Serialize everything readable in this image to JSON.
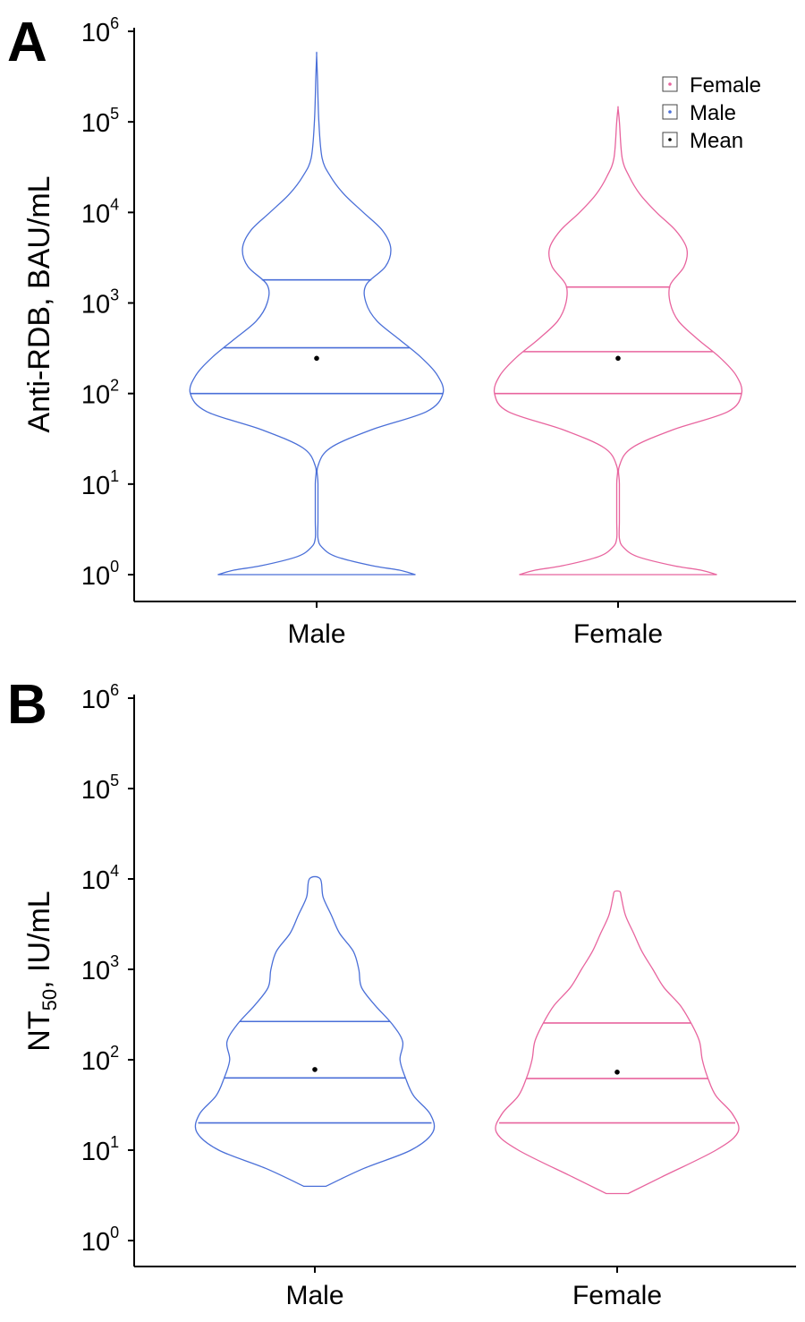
{
  "chart_data": [
    {
      "type": "violin",
      "panel": "A",
      "ylabel": "Anti-RDB, BAU/mL",
      "yscale": "log10",
      "ylim": [
        1,
        1000000
      ],
      "yticks": [
        "10^0",
        "10^1",
        "10^2",
        "10^3",
        "10^4",
        "10^5",
        "10^6"
      ],
      "categories": [
        "Male",
        "Female"
      ],
      "legend": {
        "placement": "top-right",
        "entries": [
          {
            "label": "Female",
            "color": "#e8649e"
          },
          {
            "label": "Male",
            "color": "#4a6fd8"
          },
          {
            "label": "Mean",
            "color": "#000000"
          }
        ]
      },
      "series": [
        {
          "category": "Male",
          "color": "#4a6fd8",
          "quartiles": [
            100,
            320,
            1800
          ],
          "mean": 245,
          "range": [
            1,
            550000
          ],
          "density": [
            [
              0,
              0.36
            ],
            [
              0.05,
              0.3
            ],
            [
              0.1,
              0.2
            ],
            [
              0.2,
              0.07
            ],
            [
              0.3,
              0.02
            ],
            [
              0.4,
              0.005
            ],
            [
              0.6,
              0.005
            ],
            [
              1.0,
              0.005
            ],
            [
              1.2,
              0.005
            ],
            [
              1.4,
              0.05
            ],
            [
              1.6,
              0.2
            ],
            [
              1.8,
              0.4
            ],
            [
              2.0,
              0.46
            ],
            [
              2.2,
              0.44
            ],
            [
              2.4,
              0.38
            ],
            [
              2.6,
              0.3
            ],
            [
              2.8,
              0.22
            ],
            [
              3.0,
              0.18
            ],
            [
              3.2,
              0.18
            ],
            [
              3.4,
              0.25
            ],
            [
              3.6,
              0.27
            ],
            [
              3.8,
              0.24
            ],
            [
              4.0,
              0.17
            ],
            [
              4.2,
              0.1
            ],
            [
              4.4,
              0.05
            ],
            [
              4.6,
              0.02
            ],
            [
              5.0,
              0.008
            ],
            [
              5.5,
              0.003
            ],
            [
              5.74,
              0
            ]
          ]
        },
        {
          "category": "Female",
          "color": "#e8649e",
          "quartiles": [
            100,
            290,
            1500
          ],
          "mean": 245,
          "range": [
            1,
            140000
          ],
          "density": [
            [
              0,
              0.36
            ],
            [
              0.05,
              0.3
            ],
            [
              0.1,
              0.2
            ],
            [
              0.2,
              0.07
            ],
            [
              0.3,
              0.02
            ],
            [
              0.4,
              0.005
            ],
            [
              0.6,
              0.005
            ],
            [
              1.0,
              0.005
            ],
            [
              1.2,
              0.005
            ],
            [
              1.4,
              0.05
            ],
            [
              1.6,
              0.2
            ],
            [
              1.8,
              0.4
            ],
            [
              2.0,
              0.45
            ],
            [
              2.2,
              0.43
            ],
            [
              2.4,
              0.37
            ],
            [
              2.6,
              0.29
            ],
            [
              2.8,
              0.22
            ],
            [
              3.0,
              0.19
            ],
            [
              3.2,
              0.19
            ],
            [
              3.4,
              0.24
            ],
            [
              3.6,
              0.25
            ],
            [
              3.8,
              0.21
            ],
            [
              4.0,
              0.14
            ],
            [
              4.2,
              0.08
            ],
            [
              4.4,
              0.04
            ],
            [
              4.6,
              0.015
            ],
            [
              5.0,
              0.005
            ],
            [
              5.15,
              0
            ]
          ]
        }
      ]
    },
    {
      "type": "violin",
      "panel": "B",
      "ylabel": "NT",
      "ylabel_sub": "50",
      "ylabel_rest": ", IU/mL",
      "yscale": "log10",
      "ylim": [
        1,
        1000000
      ],
      "yticks": [
        "10^0",
        "10^1",
        "10^2",
        "10^3",
        "10^4",
        "10^5",
        "10^6"
      ],
      "categories": [
        "Male",
        "Female"
      ],
      "series": [
        {
          "category": "Male",
          "color": "#4a6fd8",
          "quartiles": [
            20,
            63,
            265
          ],
          "mean": 78,
          "range": [
            4,
            10000
          ],
          "density": [
            [
              0.6,
              0.04
            ],
            [
              0.8,
              0.18
            ],
            [
              1.0,
              0.35
            ],
            [
              1.2,
              0.43
            ],
            [
              1.4,
              0.42
            ],
            [
              1.6,
              0.36
            ],
            [
              1.8,
              0.33
            ],
            [
              2.0,
              0.31
            ],
            [
              2.2,
              0.32
            ],
            [
              2.4,
              0.28
            ],
            [
              2.6,
              0.22
            ],
            [
              2.8,
              0.17
            ],
            [
              3.0,
              0.16
            ],
            [
              3.2,
              0.14
            ],
            [
              3.4,
              0.09
            ],
            [
              3.6,
              0.06
            ],
            [
              3.8,
              0.03
            ],
            [
              4.0,
              0.02
            ]
          ]
        },
        {
          "category": "Female",
          "color": "#e8649e",
          "quartiles": [
            20,
            62,
            255
          ],
          "mean": 73,
          "range": [
            3.3,
            7300
          ],
          "density": [
            [
              0.52,
              0.04
            ],
            [
              0.7,
              0.16
            ],
            [
              1.0,
              0.36
            ],
            [
              1.2,
              0.44
            ],
            [
              1.4,
              0.42
            ],
            [
              1.6,
              0.36
            ],
            [
              1.8,
              0.33
            ],
            [
              2.0,
              0.31
            ],
            [
              2.2,
              0.3
            ],
            [
              2.4,
              0.27
            ],
            [
              2.6,
              0.23
            ],
            [
              2.8,
              0.17
            ],
            [
              3.0,
              0.13
            ],
            [
              3.2,
              0.09
            ],
            [
              3.4,
              0.06
            ],
            [
              3.6,
              0.03
            ],
            [
              3.8,
              0.015
            ],
            [
              3.86,
              0.01
            ]
          ]
        }
      ]
    }
  ]
}
